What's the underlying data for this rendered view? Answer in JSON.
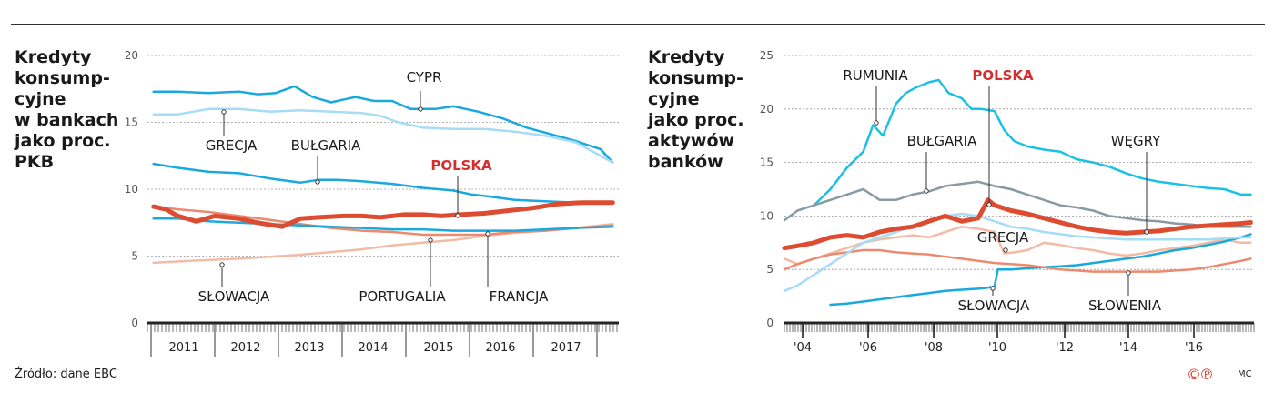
{
  "footer": {
    "source": "Źródło: dane EBC",
    "copyright": "©℗",
    "author": "MC"
  },
  "chart_data": [
    {
      "type": "line",
      "title": [
        "Kredyty",
        "konsump-",
        "cyjne",
        "w bankach",
        "jako proc.",
        "PKB"
      ],
      "x_ticks": [
        "2011",
        "2012",
        "2013",
        "2014",
        "2015",
        "2016",
        "2017"
      ],
      "xlim": [
        2010.5,
        2018.2
      ],
      "y_ticks": [
        0,
        5,
        10,
        15,
        20
      ],
      "ylim": [
        0,
        20
      ],
      "grid": true,
      "series": [
        {
          "name": "CYPR",
          "label": "CYPR",
          "color": "#19a9de",
          "width": 2.5,
          "x": [
            2010.6,
            2011.0,
            2011.5,
            2012.0,
            2012.3,
            2012.6,
            2012.9,
            2013.2,
            2013.5,
            2013.9,
            2014.2,
            2014.5,
            2014.8,
            2015.2,
            2015.5,
            2015.9,
            2016.3,
            2016.7,
            2017.1,
            2017.5,
            2017.9,
            2018.1
          ],
          "y": [
            17.3,
            17.3,
            17.2,
            17.3,
            17.1,
            17.2,
            17.7,
            16.9,
            16.5,
            16.9,
            16.6,
            16.6,
            16.0,
            16.0,
            16.2,
            15.8,
            15.3,
            14.6,
            14.1,
            13.6,
            13.0,
            12.0
          ]
        },
        {
          "name": "GRECJA",
          "label": "GRECJA",
          "color": "#a6dcf5",
          "width": 2.5,
          "x": [
            2010.6,
            2011.0,
            2011.5,
            2012.0,
            2012.5,
            2013.0,
            2013.5,
            2014.0,
            2014.3,
            2014.6,
            2015.0,
            2015.5,
            2016.0,
            2016.5,
            2017.0,
            2017.5,
            2018.1
          ],
          "y": [
            15.6,
            15.6,
            16.0,
            16.0,
            15.8,
            15.9,
            15.8,
            15.7,
            15.5,
            15.0,
            14.6,
            14.5,
            14.5,
            14.3,
            14.0,
            13.5,
            12.0
          ]
        },
        {
          "name": "BUŁGARIA",
          "label": "BUŁGARIA",
          "color": "#19a9de",
          "width": 2.5,
          "x": [
            2010.6,
            2011.0,
            2011.5,
            2012.0,
            2012.5,
            2013.0,
            2013.3,
            2013.6,
            2014.0,
            2014.5,
            2015.0,
            2015.5,
            2015.8,
            2016.0,
            2016.5,
            2017.0,
            2017.5,
            2018.1
          ],
          "y": [
            11.9,
            11.6,
            11.3,
            11.2,
            10.8,
            10.5,
            10.7,
            10.7,
            10.6,
            10.4,
            10.1,
            9.9,
            9.6,
            9.5,
            9.2,
            9.1,
            9.0,
            9.0
          ]
        },
        {
          "name": "SŁOWACJA",
          "label": "SŁOWACJA",
          "color": "#f2bba5",
          "width": 2.5,
          "x": [
            2010.6,
            2011.0,
            2011.5,
            2012.0,
            2012.5,
            2013.0,
            2013.5,
            2014.0,
            2014.5,
            2015.0,
            2015.5,
            2016.0,
            2016.5,
            2017.0,
            2017.5,
            2018.1
          ],
          "y": [
            4.5,
            4.6,
            4.7,
            4.8,
            4.95,
            5.1,
            5.3,
            5.5,
            5.8,
            6.0,
            6.2,
            6.5,
            6.75,
            6.9,
            7.1,
            7.4
          ]
        },
        {
          "name": "PORTUGALIA",
          "label": "PORTUGALIA",
          "color": "#ec8a6f",
          "width": 2.5,
          "x": [
            2010.6,
            2011.0,
            2011.5,
            2012.0,
            2012.5,
            2013.0,
            2013.5,
            2014.0,
            2014.5,
            2015.0,
            2015.5,
            2016.0,
            2016.5,
            2017.0,
            2017.5,
            2018.1
          ],
          "y": [
            8.7,
            8.5,
            8.3,
            8.0,
            7.7,
            7.4,
            7.1,
            6.9,
            6.8,
            6.6,
            6.6,
            6.6,
            6.8,
            6.9,
            7.1,
            7.3
          ]
        },
        {
          "name": "FRANCJA",
          "label": "FRANCJA",
          "color": "#19a9de",
          "width": 2.5,
          "x": [
            2010.6,
            2011.0,
            2011.5,
            2012.0,
            2012.5,
            2013.0,
            2013.5,
            2014.0,
            2014.5,
            2015.0,
            2015.5,
            2016.0,
            2016.5,
            2017.0,
            2017.5,
            2018.1
          ],
          "y": [
            7.8,
            7.8,
            7.6,
            7.5,
            7.4,
            7.3,
            7.2,
            7.1,
            7.0,
            7.0,
            6.9,
            6.9,
            6.9,
            7.0,
            7.1,
            7.2
          ]
        },
        {
          "name": "POLSKA",
          "label": "POLSKA",
          "color": "#dd4b30",
          "width": 5,
          "highlight": true,
          "x": [
            2010.6,
            2010.8,
            2011.0,
            2011.3,
            2011.6,
            2012.0,
            2012.3,
            2012.7,
            2013.0,
            2013.3,
            2013.7,
            2014.0,
            2014.3,
            2014.7,
            2015.0,
            2015.3,
            2015.6,
            2016.0,
            2016.4,
            2016.8,
            2017.2,
            2017.6,
            2018.1
          ],
          "y": [
            8.7,
            8.5,
            8.0,
            7.6,
            8.0,
            7.8,
            7.5,
            7.2,
            7.8,
            7.9,
            8.0,
            8.0,
            7.9,
            8.1,
            8.1,
            8.0,
            8.1,
            8.2,
            8.4,
            8.6,
            8.9,
            9.0,
            9.0
          ]
        }
      ]
    },
    {
      "type": "line",
      "title": [
        "Kredyty",
        "konsump-",
        "cyjne",
        "jako proc.",
        "aktywów",
        "banków"
      ],
      "x_ticks": [
        "'04",
        "'06",
        "'08",
        "'10",
        "'12",
        "'14",
        "'16"
      ],
      "xlim": [
        2003.6,
        2017.9
      ],
      "y_ticks": [
        0,
        5,
        10,
        15,
        20,
        25
      ],
      "ylim": [
        0,
        25
      ],
      "grid": true,
      "series": [
        {
          "name": "RUMUNIA",
          "label": "RUMUNIA",
          "color": "#19c2e4",
          "width": 2.5,
          "x": [
            2004.5,
            2005.0,
            2005.5,
            2006.0,
            2006.3,
            2006.6,
            2007.0,
            2007.3,
            2007.6,
            2008.0,
            2008.3,
            2008.6,
            2009.0,
            2009.3,
            2009.6,
            2010.0,
            2010.3,
            2010.6,
            2011.0,
            2011.5,
            2012.0,
            2012.5,
            2013.0,
            2013.5,
            2014.0,
            2014.5,
            2015.0,
            2015.5,
            2016.0,
            2016.5,
            2017.0,
            2017.5,
            2017.8
          ],
          "y": [
            11.0,
            12.5,
            14.5,
            16.0,
            18.5,
            17.5,
            20.5,
            21.5,
            22.0,
            22.5,
            22.7,
            21.5,
            21.0,
            20.0,
            20.0,
            19.8,
            18.0,
            17.0,
            16.5,
            16.2,
            16.0,
            15.3,
            15.0,
            14.6,
            14.0,
            13.5,
            13.2,
            13.0,
            12.8,
            12.6,
            12.5,
            12.0,
            12.0
          ]
        },
        {
          "name": "BUŁGARIA",
          "label": "BUŁGARIA",
          "color": "#8a9aa3",
          "width": 2.5,
          "x": [
            2003.6,
            2004.0,
            2004.5,
            2005.0,
            2005.5,
            2006.0,
            2006.5,
            2007.0,
            2007.5,
            2008.0,
            2008.5,
            2009.0,
            2009.5,
            2010.0,
            2010.5,
            2011.0,
            2011.5,
            2012.0,
            2012.5,
            2013.0,
            2013.5,
            2014.0,
            2014.5,
            2015.0,
            2015.5,
            2016.0,
            2016.5,
            2017.0,
            2017.5,
            2017.8
          ],
          "y": [
            9.6,
            10.5,
            11.0,
            11.5,
            12.0,
            12.5,
            11.5,
            11.5,
            12.0,
            12.3,
            12.8,
            13.0,
            13.2,
            12.8,
            12.5,
            12.0,
            11.5,
            11.0,
            10.8,
            10.5,
            10.0,
            9.8,
            9.6,
            9.5,
            9.3,
            9.2,
            9.0,
            9.0,
            9.0,
            9.0
          ]
        },
        {
          "name": "POLSKA",
          "label": "POLSKA",
          "color": "#dd4b30",
          "width": 5,
          "highlight": true,
          "x": [
            2003.6,
            2004.0,
            2004.5,
            2005.0,
            2005.5,
            2006.0,
            2006.5,
            2007.0,
            2007.5,
            2008.0,
            2008.5,
            2009.0,
            2009.5,
            2009.8,
            2010.0,
            2010.5,
            2011.0,
            2011.5,
            2012.0,
            2012.5,
            2013.0,
            2013.5,
            2014.0,
            2014.5,
            2015.0,
            2015.5,
            2016.0,
            2016.5,
            2017.0,
            2017.5,
            2017.8
          ],
          "y": [
            7.0,
            7.2,
            7.5,
            8.0,
            8.2,
            8.0,
            8.5,
            8.8,
            9.0,
            9.5,
            10.0,
            9.5,
            9.8,
            11.5,
            11.0,
            10.5,
            10.2,
            9.8,
            9.4,
            9.0,
            8.7,
            8.5,
            8.4,
            8.5,
            8.6,
            8.8,
            9.0,
            9.1,
            9.2,
            9.3,
            9.4
          ]
        },
        {
          "name": "GRECJA",
          "label": "GRECJA",
          "color": "#f2bba5",
          "width": 2.5,
          "x": [
            2003.6,
            2004.0,
            2004.5,
            2005.0,
            2005.5,
            2006.0,
            2006.5,
            2007.0,
            2007.5,
            2008.0,
            2008.5,
            2009.0,
            2009.5,
            2010.0,
            2010.3,
            2010.6,
            2011.0,
            2011.5,
            2012.0,
            2012.5,
            2013.0,
            2013.5,
            2014.0,
            2014.5,
            2015.0,
            2015.5,
            2016.0,
            2016.5,
            2017.0,
            2017.5,
            2017.8
          ],
          "y": [
            6.0,
            5.5,
            6.0,
            6.5,
            7.0,
            7.5,
            7.8,
            8.0,
            8.2,
            8.0,
            8.5,
            9.0,
            8.8,
            8.5,
            6.5,
            6.6,
            6.8,
            7.5,
            7.3,
            7.0,
            6.8,
            6.5,
            6.3,
            6.5,
            6.8,
            7.0,
            7.2,
            7.5,
            7.8,
            7.5,
            7.5
          ]
        },
        {
          "name": "SŁOWACJA",
          "label": "SŁOWACJA",
          "color": "#19a9de",
          "width": 2.5,
          "x": [
            2005.0,
            2005.5,
            2006.0,
            2006.5,
            2007.0,
            2007.5,
            2008.0,
            2008.5,
            2009.0,
            2009.5,
            2009.8,
            2010.0,
            2010.1,
            2010.5,
            2011.0,
            2011.5,
            2012.0,
            2012.5,
            2013.0,
            2013.5,
            2014.0,
            2014.5,
            2015.0,
            2015.5,
            2016.0,
            2016.5,
            2017.0,
            2017.5,
            2017.8
          ],
          "y": [
            1.7,
            1.8,
            2.0,
            2.2,
            2.4,
            2.6,
            2.8,
            3.0,
            3.1,
            3.2,
            3.3,
            3.4,
            5.0,
            5.0,
            5.1,
            5.2,
            5.3,
            5.4,
            5.6,
            5.8,
            6.0,
            6.2,
            6.5,
            6.8,
            7.0,
            7.3,
            7.6,
            8.0,
            8.3
          ]
        },
        {
          "name": "SŁOWENIA",
          "label": "SŁOWENIA",
          "color": "#ec8a6f",
          "width": 2.5,
          "x": [
            2003.6,
            2004.0,
            2004.5,
            2005.0,
            2005.5,
            2006.0,
            2006.5,
            2007.0,
            2007.5,
            2008.0,
            2008.5,
            2009.0,
            2009.5,
            2010.0,
            2010.5,
            2011.0,
            2011.5,
            2012.0,
            2012.5,
            2013.0,
            2013.5,
            2014.0,
            2014.5,
            2015.0,
            2015.5,
            2016.0,
            2016.5,
            2017.0,
            2017.5,
            2017.8
          ],
          "y": [
            5.0,
            5.5,
            6.0,
            6.4,
            6.6,
            6.8,
            6.8,
            6.6,
            6.5,
            6.4,
            6.2,
            6.0,
            5.8,
            5.6,
            5.5,
            5.4,
            5.2,
            5.0,
            4.9,
            4.8,
            4.8,
            4.8,
            4.8,
            4.8,
            4.9,
            5.0,
            5.2,
            5.5,
            5.8,
            6.0
          ]
        },
        {
          "name": "WĘGRY",
          "label": "WĘGRY",
          "color": "#a6dcf5",
          "width": 2.5,
          "x": [
            2003.6,
            2004.0,
            2004.5,
            2005.0,
            2005.5,
            2006.0,
            2006.5,
            2007.0,
            2007.5,
            2008.0,
            2008.5,
            2009.0,
            2009.5,
            2010.0,
            2010.5,
            2011.0,
            2011.5,
            2012.0,
            2012.5,
            2013.0,
            2013.5,
            2014.0,
            2014.5,
            2015.0,
            2015.5,
            2016.0,
            2016.5,
            2017.0,
            2017.5,
            2017.8
          ],
          "y": [
            3.0,
            3.5,
            4.5,
            5.5,
            6.5,
            7.5,
            8.0,
            8.5,
            9.0,
            9.5,
            10.0,
            10.2,
            10.0,
            9.5,
            9.0,
            8.8,
            8.5,
            8.3,
            8.1,
            8.0,
            7.9,
            7.8,
            7.8,
            7.8,
            7.8,
            7.8,
            7.8,
            7.9,
            8.0,
            8.0
          ]
        }
      ]
    }
  ]
}
